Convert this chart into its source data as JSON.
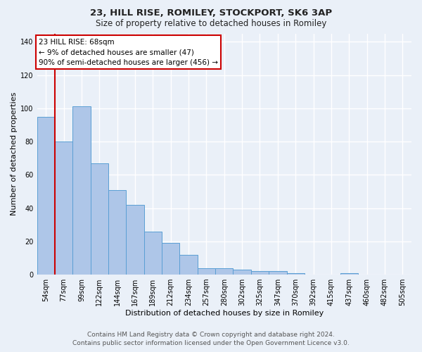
{
  "title1": "23, HILL RISE, ROMILEY, STOCKPORT, SK6 3AP",
  "title2": "Size of property relative to detached houses in Romiley",
  "xlabel": "Distribution of detached houses by size in Romiley",
  "ylabel": "Number of detached properties",
  "bar_labels": [
    "54sqm",
    "77sqm",
    "99sqm",
    "122sqm",
    "144sqm",
    "167sqm",
    "189sqm",
    "212sqm",
    "234sqm",
    "257sqm",
    "280sqm",
    "302sqm",
    "325sqm",
    "347sqm",
    "370sqm",
    "392sqm",
    "415sqm",
    "437sqm",
    "460sqm",
    "482sqm",
    "505sqm"
  ],
  "bar_values": [
    95,
    80,
    101,
    67,
    51,
    42,
    26,
    19,
    12,
    4,
    4,
    3,
    2,
    2,
    1,
    0,
    0,
    1,
    0,
    0,
    0
  ],
  "bar_color": "#aec6e8",
  "bar_edge_color": "#5a9fd4",
  "annotation_title": "23 HILL RISE: 68sqm",
  "annotation_line1": "← 9% of detached houses are smaller (47)",
  "annotation_line2": "90% of semi-detached houses are larger (456) →",
  "annotation_box_facecolor": "#ffffff",
  "annotation_box_edgecolor": "#cc0000",
  "red_line_color": "#cc0000",
  "ylim": [
    0,
    145
  ],
  "yticks": [
    0,
    20,
    40,
    60,
    80,
    100,
    120,
    140
  ],
  "footer1": "Contains HM Land Registry data © Crown copyright and database right 2024.",
  "footer2": "Contains public sector information licensed under the Open Government Licence v3.0.",
  "bg_color": "#eaf0f8",
  "plot_bg_color": "#eaf0f8",
  "grid_color": "#ffffff",
  "title1_fontsize": 9.5,
  "title2_fontsize": 8.5,
  "footer_fontsize": 6.5,
  "ann_fontsize": 7.5,
  "xlabel_fontsize": 8,
  "ylabel_fontsize": 8,
  "tick_fontsize": 7
}
